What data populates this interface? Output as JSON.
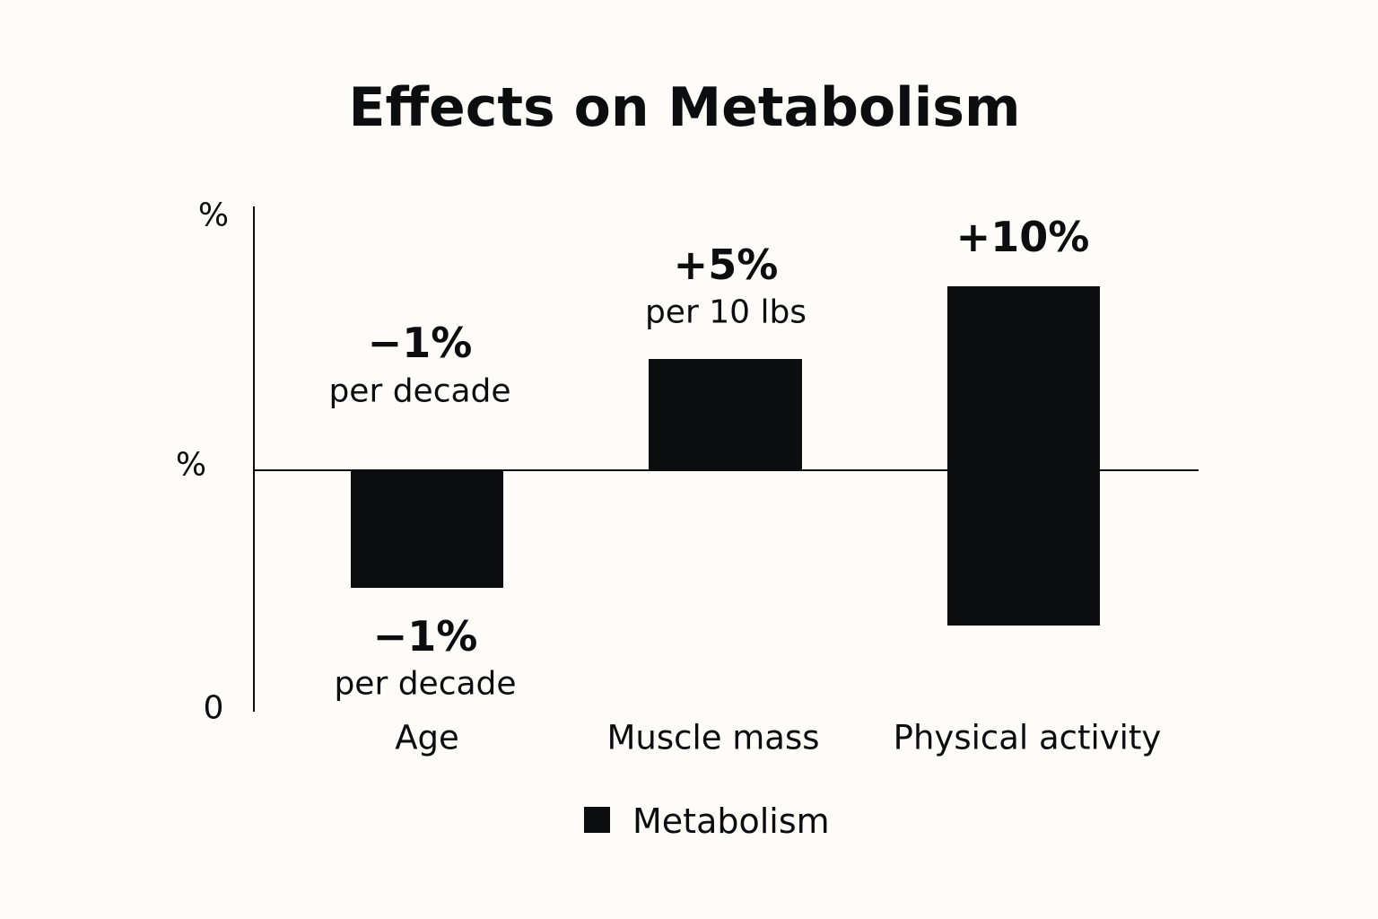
{
  "chart_data": {
    "type": "bar",
    "title": "Effects on Metabolism",
    "y_tick_labels": [
      "%",
      "%",
      "0"
    ],
    "categories": [
      "Age",
      "Muscle mass",
      "Physical activity"
    ],
    "series": [
      {
        "name": "Metabolism",
        "values": [
          -1,
          5,
          10
        ]
      }
    ],
    "bar_color": "#0b0d0e",
    "data_labels": [
      {
        "value": "−1%",
        "sub": "per decade",
        "value_below": "−1%",
        "sub_below": "per decade"
      },
      {
        "value": "+5%",
        "sub": "per 10 lbs"
      },
      {
        "value": "+10%"
      }
    ],
    "legend": {
      "label": "Metabolism",
      "position": "bottom"
    },
    "grid": false
  }
}
